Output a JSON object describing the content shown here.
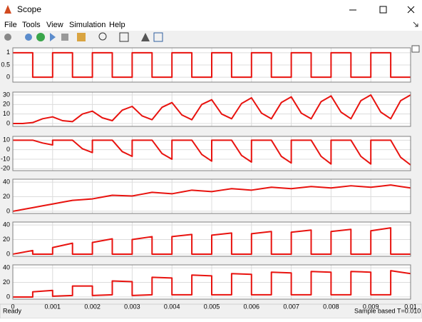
{
  "window": {
    "title": "Scope"
  },
  "menu": [
    "File",
    "Tools",
    "View",
    "Simulation",
    "Help"
  ],
  "status": {
    "left": "Ready",
    "mode": "Sample based",
    "time": "T=0.010"
  },
  "chart_data": [
    {
      "type": "line",
      "color": "#e8130f",
      "grid": true,
      "xlim": [
        0,
        0.01
      ],
      "xticks": [
        0,
        0.001,
        0.002,
        0.003,
        0.004,
        0.005,
        0.006,
        0.007,
        0.008,
        0.009,
        0.01
      ],
      "ylim": [
        -0.2,
        1.2
      ],
      "yticks": [
        0,
        0.5,
        1
      ],
      "x": [
        0,
        0.0005,
        0.0005,
        0.001,
        0.001,
        0.0015,
        0.0015,
        0.002,
        0.002,
        0.0025,
        0.0025,
        0.003,
        0.003,
        0.0035,
        0.0035,
        0.004,
        0.004,
        0.0045,
        0.0045,
        0.005,
        0.005,
        0.0055,
        0.0055,
        0.006,
        0.006,
        0.0065,
        0.0065,
        0.007,
        0.007,
        0.0075,
        0.0075,
        0.008,
        0.008,
        0.0085,
        0.0085,
        0.009,
        0.009,
        0.0095,
        0.0095,
        0.01
      ],
      "values": [
        1,
        1,
        0,
        0,
        1,
        1,
        0,
        0,
        1,
        1,
        0,
        0,
        1,
        1,
        0,
        0,
        1,
        1,
        0,
        0,
        1,
        1,
        0,
        0,
        1,
        1,
        0,
        0,
        1,
        1,
        0,
        0,
        1,
        1,
        0,
        0,
        1,
        1,
        0,
        0
      ]
    },
    {
      "type": "line",
      "color": "#e8130f",
      "grid": true,
      "xlim": [
        0,
        0.01
      ],
      "xticks": [
        0,
        0.001,
        0.002,
        0.003,
        0.004,
        0.005,
        0.006,
        0.007,
        0.008,
        0.009,
        0.01
      ],
      "ylim": [
        -3,
        33
      ],
      "yticks": [
        0,
        10,
        20,
        30
      ],
      "x": [
        0,
        0.00025,
        0.0005,
        0.00075,
        0.001,
        0.00125,
        0.0015,
        0.00175,
        0.002,
        0.00225,
        0.0025,
        0.00275,
        0.003,
        0.00325,
        0.0035,
        0.00375,
        0.004,
        0.00425,
        0.0045,
        0.00475,
        0.005,
        0.00525,
        0.0055,
        0.00575,
        0.006,
        0.00625,
        0.0065,
        0.00675,
        0.007,
        0.00725,
        0.0075,
        0.00775,
        0.008,
        0.00825,
        0.0085,
        0.00875,
        0.009,
        0.00925,
        0.0095,
        0.00975,
        0.01
      ],
      "values": [
        0,
        0,
        1,
        5,
        7,
        3,
        2,
        10,
        13,
        6,
        3,
        14,
        18,
        8,
        4,
        17,
        22,
        9,
        4,
        20,
        25,
        10,
        5,
        21,
        27,
        11,
        5,
        22,
        28,
        11,
        5,
        23,
        29,
        12,
        5,
        24,
        30,
        12,
        5,
        24,
        30
      ]
    },
    {
      "type": "line",
      "color": "#e8130f",
      "grid": true,
      "xlim": [
        0,
        0.01
      ],
      "xticks": [
        0,
        0.001,
        0.002,
        0.003,
        0.004,
        0.005,
        0.006,
        0.007,
        0.008,
        0.009,
        0.01
      ],
      "ylim": [
        -22,
        14
      ],
      "yticks": [
        -20,
        -10,
        0,
        10
      ],
      "x": [
        0,
        0.0005,
        0.00075,
        0.001,
        0.001,
        0.0015,
        0.00175,
        0.002,
        0.002,
        0.0025,
        0.00275,
        0.003,
        0.003,
        0.0035,
        0.00375,
        0.004,
        0.004,
        0.0045,
        0.00475,
        0.005,
        0.005,
        0.0055,
        0.00575,
        0.006,
        0.006,
        0.0065,
        0.00675,
        0.007,
        0.007,
        0.0075,
        0.00775,
        0.008,
        0.008,
        0.0085,
        0.00875,
        0.009,
        0.009,
        0.0095,
        0.00975,
        0.01
      ],
      "values": [
        10,
        10,
        7,
        5,
        10,
        10,
        1,
        -3,
        10,
        10,
        -2,
        -7,
        10,
        10,
        -4,
        -10,
        10,
        10,
        -5,
        -12,
        10,
        10,
        -6,
        -13,
        10,
        10,
        -7,
        -14,
        10,
        10,
        -7,
        -15,
        10,
        10,
        -7,
        -15,
        10,
        10,
        -8,
        -16
      ]
    },
    {
      "type": "line",
      "color": "#e8130f",
      "grid": true,
      "xlim": [
        0,
        0.01
      ],
      "xticks": [
        0,
        0.001,
        0.002,
        0.003,
        0.004,
        0.005,
        0.006,
        0.007,
        0.008,
        0.009,
        0.01
      ],
      "ylim": [
        -3,
        44
      ],
      "yticks": [
        0,
        20,
        40
      ],
      "x": [
        0,
        0.00025,
        0.0005,
        0.00075,
        0.001,
        0.00125,
        0.0015,
        0.00175,
        0.002,
        0.00225,
        0.0025,
        0.00275,
        0.003,
        0.00325,
        0.0035,
        0.00375,
        0.004,
        0.00425,
        0.0045,
        0.00475,
        0.005,
        0.00525,
        0.0055,
        0.00575,
        0.006,
        0.00625,
        0.0065,
        0.00675,
        0.007,
        0.00725,
        0.0075,
        0.00775,
        0.008,
        0.00825,
        0.0085,
        0.00875,
        0.009,
        0.00925,
        0.0095,
        0.00975,
        0.01
      ],
      "values": [
        0,
        2.5,
        5,
        7.5,
        10,
        12.5,
        15,
        16,
        17,
        19.5,
        22,
        21.5,
        21,
        23.5,
        26,
        25,
        24,
        26.5,
        29,
        28,
        27,
        29,
        31,
        30,
        29,
        31,
        33,
        32,
        31,
        32.5,
        34,
        33,
        32,
        33.5,
        35,
        34,
        33,
        34.5,
        36,
        34,
        32
      ]
    },
    {
      "type": "line",
      "color": "#e8130f",
      "grid": true,
      "xlim": [
        0,
        0.01
      ],
      "xticks": [
        0,
        0.001,
        0.002,
        0.003,
        0.004,
        0.005,
        0.006,
        0.007,
        0.008,
        0.009,
        0.01
      ],
      "ylim": [
        -3,
        44
      ],
      "yticks": [
        0,
        20,
        40
      ],
      "x": [
        0,
        0.0005,
        0.0005,
        0.001,
        0.001,
        0.0015,
        0.0015,
        0.002,
        0.002,
        0.0025,
        0.0025,
        0.003,
        0.003,
        0.0035,
        0.0035,
        0.004,
        0.004,
        0.0045,
        0.0045,
        0.005,
        0.005,
        0.0055,
        0.0055,
        0.006,
        0.006,
        0.0065,
        0.0065,
        0.007,
        0.007,
        0.0075,
        0.0075,
        0.008,
        0.008,
        0.0085,
        0.0085,
        0.009,
        0.009,
        0.0095,
        0.0095,
        0.01
      ],
      "values": [
        0,
        5,
        0,
        0,
        9,
        15,
        0,
        0,
        16,
        21,
        0,
        0,
        20,
        24,
        0,
        0,
        24,
        27,
        0,
        0,
        26,
        29,
        0,
        0,
        28,
        31,
        0,
        0,
        30,
        33,
        0,
        0,
        31,
        34,
        0,
        0,
        32,
        36,
        0,
        0
      ]
    },
    {
      "type": "line",
      "color": "#e8130f",
      "grid": true,
      "xlim": [
        0,
        0.01
      ],
      "xticks": [
        0,
        0.001,
        0.002,
        0.003,
        0.004,
        0.005,
        0.006,
        0.007,
        0.008,
        0.009,
        0.01
      ],
      "ylim": [
        -3,
        44
      ],
      "yticks": [
        0,
        20,
        40
      ],
      "x": [
        0,
        0.0005,
        0.0005,
        0.001,
        0.001,
        0.0015,
        0.0015,
        0.002,
        0.002,
        0.0025,
        0.0025,
        0.003,
        0.003,
        0.0035,
        0.0035,
        0.004,
        0.004,
        0.0045,
        0.0045,
        0.005,
        0.005,
        0.0055,
        0.0055,
        0.006,
        0.006,
        0.0065,
        0.0065,
        0.007,
        0.007,
        0.0075,
        0.0075,
        0.008,
        0.008,
        0.0085,
        0.0085,
        0.009,
        0.009,
        0.0095,
        0.0095,
        0.01
      ],
      "values": [
        0,
        0,
        7,
        9,
        1,
        2,
        15,
        15,
        2,
        3,
        22,
        21,
        2,
        3,
        27,
        26,
        3,
        3,
        30,
        29,
        3,
        3,
        32,
        31,
        3,
        3,
        34,
        33,
        3,
        3,
        35,
        34,
        3,
        3,
        35,
        34,
        3,
        3,
        36,
        32
      ]
    }
  ]
}
